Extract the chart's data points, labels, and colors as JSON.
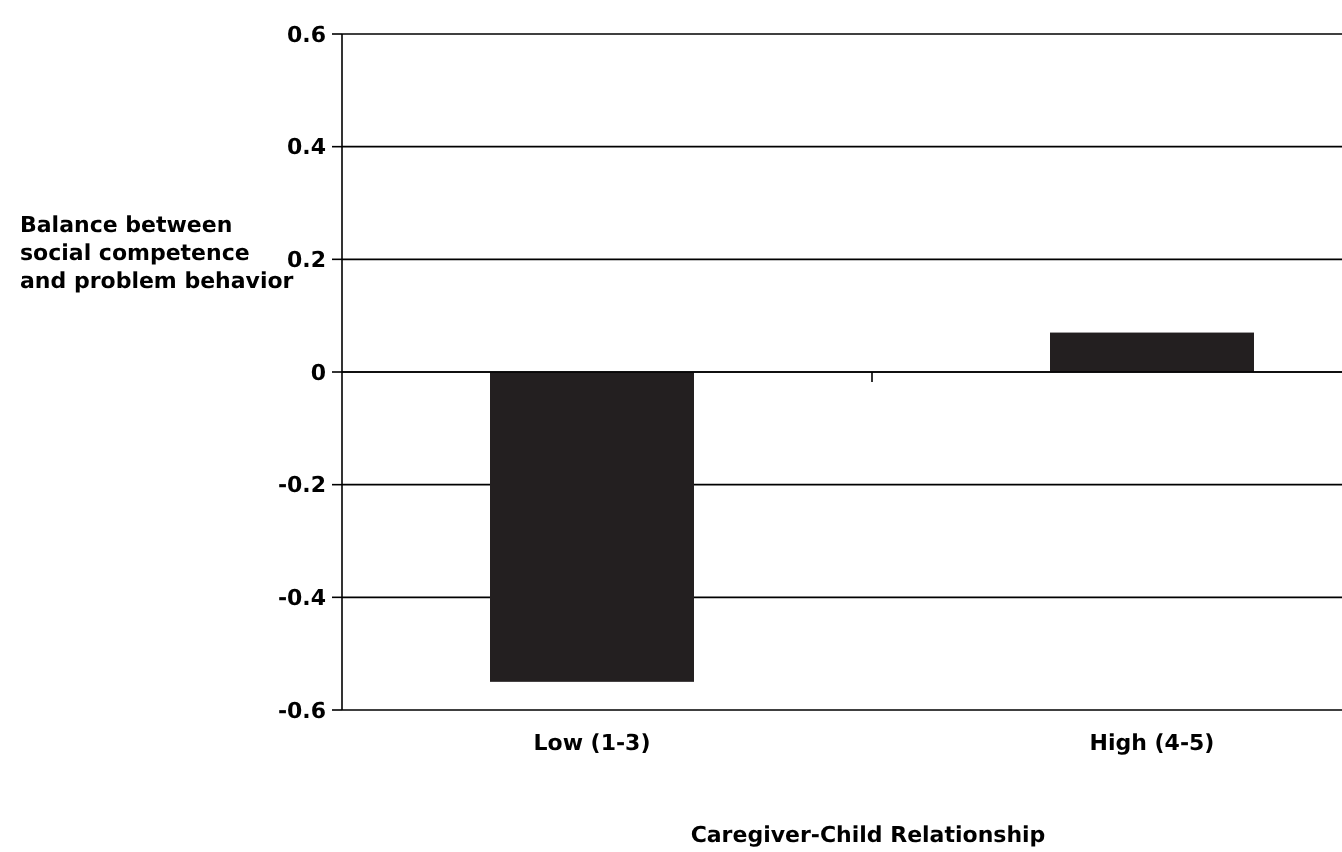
{
  "chart_data": {
    "type": "bar",
    "xlabel": "Caregiver-Child Relationship",
    "ylabel": "Balance between social competence and problem behavior",
    "categories": [
      "Low (1-3)",
      "High (4-5)"
    ],
    "values": [
      -0.55,
      0.07
    ],
    "color": "#231f20",
    "ylim": [
      -0.6,
      0.6
    ],
    "yticks": [
      {
        "value": -0.6,
        "label": "-0.6"
      },
      {
        "value": -0.4,
        "label": "-0.4"
      },
      {
        "value": -0.2,
        "label": "-0.2"
      },
      {
        "value": 0,
        "label": "0"
      },
      {
        "value": 0.2,
        "label": "0.2"
      },
      {
        "value": 0.4,
        "label": "0.4"
      },
      {
        "value": 0.6,
        "label": "0.6"
      }
    ],
    "grid": "y"
  }
}
